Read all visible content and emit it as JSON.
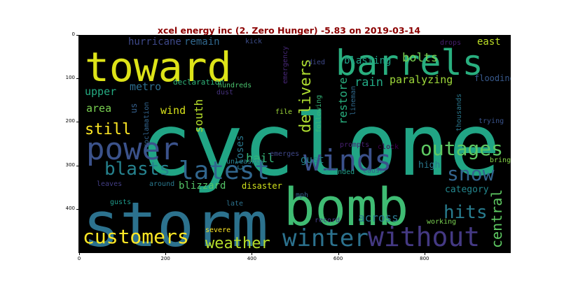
{
  "title": "xcel energy inc (2. Zero Hunger) -5.83 on 2019-03-14",
  "axes": {
    "x_ticks": [
      "0",
      "200",
      "400",
      "600",
      "800"
    ],
    "y_ticks": [
      "0",
      "100",
      "200",
      "300",
      "400"
    ],
    "x_range": [
      0,
      1000
    ],
    "y_range": [
      0,
      500
    ]
  },
  "words": [
    {
      "text": "cyclone",
      "color": "#21a585"
    },
    {
      "text": "storm",
      "color": "#2c728e"
    },
    {
      "text": "bomb",
      "color": "#3fbc73"
    },
    {
      "text": "toward",
      "color": "#dde318"
    },
    {
      "text": "barrels",
      "color": "#29af7f"
    },
    {
      "text": "winds",
      "color": "#3b518b"
    },
    {
      "text": "power",
      "color": "#3b528b"
    },
    {
      "text": "latest",
      "color": "#31668e"
    },
    {
      "text": "without",
      "color": "#443983"
    },
    {
      "text": "winter",
      "color": "#2c728e"
    },
    {
      "text": "customers",
      "color": "#fde725"
    },
    {
      "text": "outages",
      "color": "#5ec962"
    },
    {
      "text": "blasts",
      "color": "#26828e"
    },
    {
      "text": "snow",
      "color": "#33638d"
    },
    {
      "text": "hits",
      "color": "#287c8e"
    },
    {
      "text": "weather",
      "color": "#b5de2b"
    },
    {
      "text": "central",
      "color": "#5ec962"
    },
    {
      "text": "delivers",
      "color": "#addc30"
    },
    {
      "text": "still",
      "color": "#fde725"
    },
    {
      "text": "blasting",
      "color": "#1fa187"
    },
    {
      "text": "bolts",
      "color": "#7ad151"
    },
    {
      "text": "rain",
      "color": "#22a884"
    },
    {
      "text": "paralyzing",
      "color": "#9fda3a"
    },
    {
      "text": "hail",
      "color": "#35b779"
    },
    {
      "text": "across",
      "color": "#2a788e"
    },
    {
      "text": "hurricane",
      "color": "#3e4989"
    },
    {
      "text": "remain",
      "color": "#31688e"
    },
    {
      "text": "metro",
      "color": "#2e6e8e"
    },
    {
      "text": "upper",
      "color": "#25ab82"
    },
    {
      "text": "area",
      "color": "#7ad151"
    },
    {
      "text": "us",
      "color": "#35608d"
    },
    {
      "text": "wind",
      "color": "#d8e219"
    },
    {
      "text": "south",
      "color": "#b5de2b"
    },
    {
      "text": "closes",
      "color": "#2a788e"
    },
    {
      "text": "restore",
      "color": "#29af7f"
    },
    {
      "text": "gust",
      "color": "#25848e"
    },
    {
      "text": "east",
      "color": "#bddf26"
    },
    {
      "text": "flooding",
      "color": "#38598c"
    },
    {
      "text": "high",
      "color": "#2a788e"
    },
    {
      "text": "category",
      "color": "#24878e"
    },
    {
      "text": "blizzard",
      "color": "#54c568"
    },
    {
      "text": "disaster",
      "color": "#d0e11c"
    },
    {
      "text": "declaration",
      "color": "#31b57b"
    },
    {
      "text": "hundreds",
      "color": "#4ac16d"
    },
    {
      "text": "dust",
      "color": "#46327e"
    },
    {
      "text": "proclamation",
      "color": "#32648e"
    },
    {
      "text": "emergency",
      "color": "#482878"
    },
    {
      "text": "died",
      "color": "#3e4989"
    },
    {
      "text": "kick",
      "color": "#3d4e8a"
    },
    {
      "text": "drops",
      "color": "#481f70"
    },
    {
      "text": "following",
      "color": "#35b779"
    },
    {
      "text": "lineman",
      "color": "#306a8e"
    },
    {
      "text": "thousands",
      "color": "#2a788e"
    },
    {
      "text": "trying",
      "color": "#3a538b"
    },
    {
      "text": "bring",
      "color": "#86d549"
    },
    {
      "text": "file",
      "color": "#9fda3a"
    },
    {
      "text": "unleashes",
      "color": "#27808e"
    },
    {
      "text": "emerges",
      "color": "#3f4788"
    },
    {
      "text": "prompts",
      "color": "#482173"
    },
    {
      "text": "clock",
      "color": "#440154"
    },
    {
      "text": "stranded",
      "color": "#1f9e89"
    },
    {
      "text": "cause",
      "color": "#355e8d"
    },
    {
      "text": "leaves",
      "color": "#433e85"
    },
    {
      "text": "around",
      "color": "#2a788e"
    },
    {
      "text": "gusts",
      "color": "#1f9a8a"
    },
    {
      "text": "late",
      "color": "#2c728e"
    },
    {
      "text": "mph",
      "color": "#355f8d"
    },
    {
      "text": "record",
      "color": "#433d84"
    },
    {
      "text": "working",
      "color": "#7ad151"
    },
    {
      "text": "severe",
      "color": "#fde725"
    }
  ]
}
